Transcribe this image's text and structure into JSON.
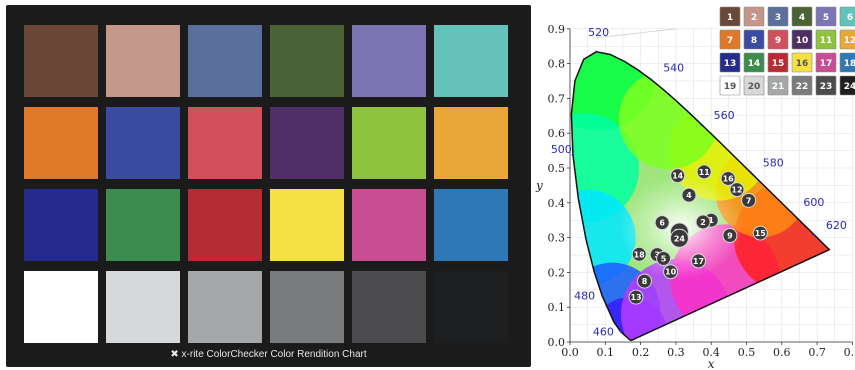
{
  "checker": {
    "caption": "x-rite ColorChecker Color Rendition Chart",
    "rows": [
      [
        "#6b4738",
        "#c4978b",
        "#5a6f9c",
        "#4a6236",
        "#7d74b4",
        "#64c2bb"
      ],
      [
        "#e0782a",
        "#3c4ba2",
        "#d1505c",
        "#4f2f66",
        "#8fc33f",
        "#e9a737"
      ],
      [
        "#252a8d",
        "#3b8c4d",
        "#b72c32",
        "#f4e043",
        "#c84d93",
        "#2f78b6"
      ],
      [
        "#ffffff",
        "#d6d8da",
        "#a5a7a9",
        "#7a7b7d",
        "#4c4c4e",
        "#1e1f21"
      ]
    ]
  },
  "diagram": {
    "x_axis_label": "x",
    "y_axis_label": "y",
    "x_ticks": [
      "0.0",
      "0.1",
      "0.2",
      "0.3",
      "0.4",
      "0.5",
      "0.6",
      "0.7",
      "0.8"
    ],
    "y_ticks": [
      "0.0",
      "0.1",
      "0.2",
      "0.3",
      "0.4",
      "0.5",
      "0.6",
      "0.7",
      "0.8",
      "0.9"
    ],
    "wavelength_labels": [
      {
        "text": "460",
        "x": 0.144,
        "y": 0.03
      },
      {
        "text": "480",
        "x": 0.091,
        "y": 0.133
      },
      {
        "text": "500",
        "x": 0.008,
        "y": 0.538
      },
      {
        "text": "520",
        "x": 0.074,
        "y": 0.834
      },
      {
        "text": "540",
        "x": 0.23,
        "y": 0.754
      },
      {
        "text": "560",
        "x": 0.373,
        "y": 0.624
      },
      {
        "text": "580",
        "x": 0.512,
        "y": 0.487
      },
      {
        "text": "600",
        "x": 0.627,
        "y": 0.373
      },
      {
        "text": "620",
        "x": 0.691,
        "y": 0.308
      }
    ],
    "legend_colors": [
      "#6b4738",
      "#c4978b",
      "#5a6f9c",
      "#4a6236",
      "#7d74b4",
      "#64c2bb",
      "#e0782a",
      "#3c4ba2",
      "#d1505c",
      "#4f2f66",
      "#8fc33f",
      "#e9a737",
      "#252a8d",
      "#3b8c4d",
      "#b72c32",
      "#f4e043",
      "#c84d93",
      "#2f78b6",
      "#ffffff",
      "#d6d8da",
      "#a5a7a9",
      "#7a7b7d",
      "#4c4c4e",
      "#1e1f21"
    ],
    "legend_labels": [
      "1",
      "2",
      "3",
      "4",
      "5",
      "6",
      "7",
      "8",
      "9",
      "10",
      "11",
      "12",
      "13",
      "14",
      "15",
      "16",
      "17",
      "18",
      "19",
      "20",
      "21",
      "22",
      "23",
      "24"
    ],
    "points": [
      {
        "label": "1",
        "x": 0.4,
        "y": 0.35
      },
      {
        "label": "2",
        "x": 0.377,
        "y": 0.345
      },
      {
        "label": "3",
        "x": 0.247,
        "y": 0.251
      },
      {
        "label": "4",
        "x": 0.337,
        "y": 0.422
      },
      {
        "label": "5",
        "x": 0.265,
        "y": 0.24
      },
      {
        "label": "6",
        "x": 0.261,
        "y": 0.343
      },
      {
        "label": "7",
        "x": 0.506,
        "y": 0.407
      },
      {
        "label": "8",
        "x": 0.211,
        "y": 0.175
      },
      {
        "label": "9",
        "x": 0.453,
        "y": 0.306
      },
      {
        "label": "10",
        "x": 0.285,
        "y": 0.202
      },
      {
        "label": "11",
        "x": 0.38,
        "y": 0.489
      },
      {
        "label": "12",
        "x": 0.473,
        "y": 0.438
      },
      {
        "label": "13",
        "x": 0.187,
        "y": 0.129
      },
      {
        "label": "14",
        "x": 0.305,
        "y": 0.478
      },
      {
        "label": "15",
        "x": 0.539,
        "y": 0.313
      },
      {
        "label": "16",
        "x": 0.448,
        "y": 0.47
      },
      {
        "label": "17",
        "x": 0.364,
        "y": 0.233
      },
      {
        "label": "18",
        "x": 0.196,
        "y": 0.252
      },
      {
        "label": "19",
        "x": 0.31,
        "y": 0.316
      },
      {
        "label": "24",
        "x": 0.31,
        "y": 0.298
      }
    ]
  }
}
